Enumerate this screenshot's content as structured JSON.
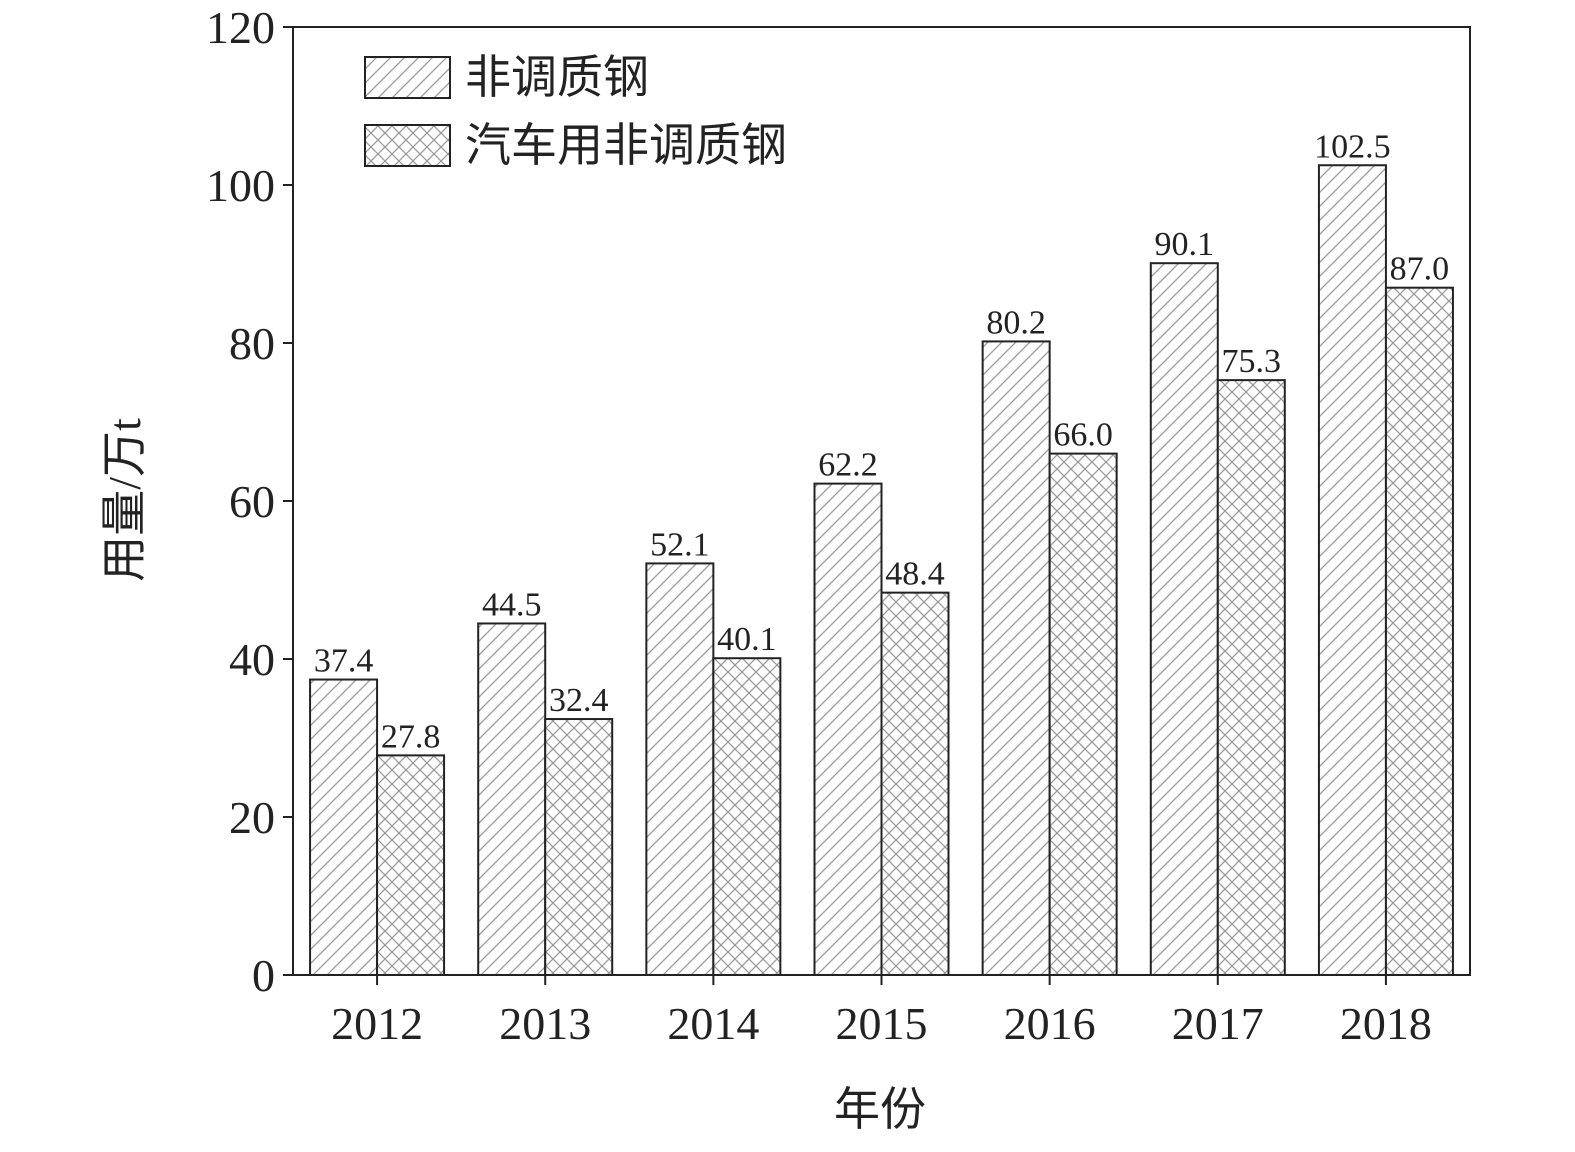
{
  "chart_data": {
    "type": "bar",
    "ylabel": "用量/万t",
    "xlabel": "年份",
    "categories": [
      "2012",
      "2013",
      "2014",
      "2015",
      "2016",
      "2017",
      "2018"
    ],
    "series": [
      {
        "name": "非调质钢",
        "color": "#9a9a9a",
        "pattern": "hatch",
        "values": [
          37.4,
          44.5,
          52.1,
          62.2,
          80.2,
          90.1,
          102.5
        ],
        "value_labels": [
          "37.4",
          "44.5",
          "52.1",
          "62.2",
          "80.2",
          "90.1",
          "102.5"
        ]
      },
      {
        "name": "汽车用非调质钢",
        "color": "#9a9a9a",
        "pattern": "crosshatch",
        "values": [
          27.8,
          32.4,
          40.1,
          48.4,
          66.0,
          75.3,
          87.0
        ],
        "value_labels": [
          "27.8",
          "32.4",
          "40.1",
          "48.4",
          "66.0",
          "75.3",
          "87.0"
        ]
      }
    ],
    "ylim": [
      0,
      120
    ],
    "yticks": [
      0,
      20,
      40,
      60,
      80,
      100,
      120
    ],
    "legend": "upper left"
  }
}
